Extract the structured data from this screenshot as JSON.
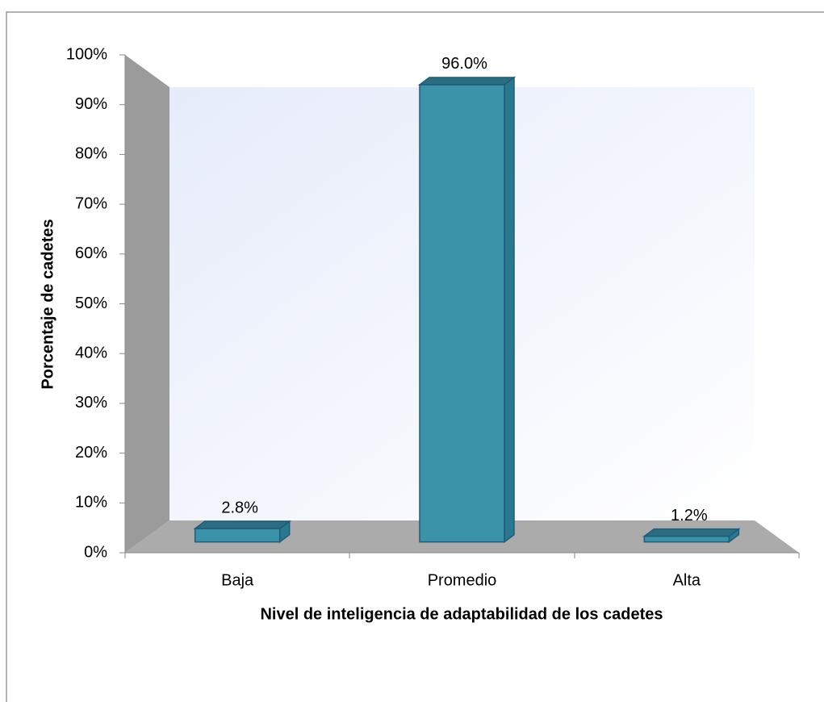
{
  "chart_data": {
    "type": "bar3d",
    "x_label": "Nivel de inteligencia de adaptabilidad de los cadetes",
    "y_label": "Porcentaje de cadetes",
    "categories": [
      "Baja",
      "Promedio",
      "Alta"
    ],
    "values": [
      2.8,
      96.0,
      1.2
    ],
    "value_labels": [
      "2.8%",
      "96.0%",
      "1.2%"
    ],
    "color": "#3a93a8",
    "ylim": [
      0,
      100
    ],
    "yticks": [
      {
        "value": 0,
        "label": "0%"
      },
      {
        "value": 10,
        "label": "10%"
      },
      {
        "value": 20,
        "label": "20%"
      },
      {
        "value": 30,
        "label": "30%"
      },
      {
        "value": 40,
        "label": "40%"
      },
      {
        "value": 50,
        "label": "50%"
      },
      {
        "value": 60,
        "label": "60%"
      },
      {
        "value": 70,
        "label": "70%"
      },
      {
        "value": 80,
        "label": "80%"
      },
      {
        "value": 90,
        "label": "90%"
      },
      {
        "value": 100,
        "label": "100%"
      }
    ],
    "grid": false
  }
}
